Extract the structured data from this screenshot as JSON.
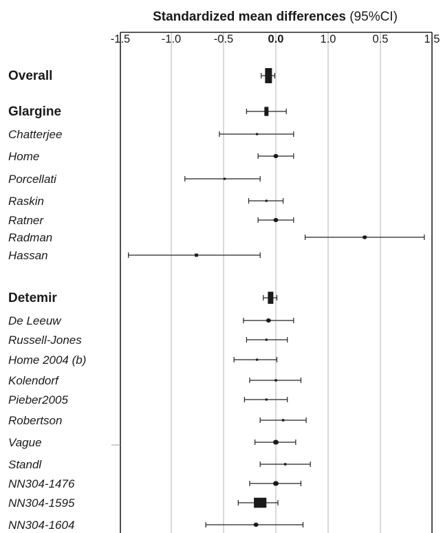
{
  "chart_data": {
    "type": "forest",
    "title_bold": "Standardized mean differences",
    "title_suffix": "(95%CI)",
    "xticks": [
      "-1.5",
      "-1.0",
      "-0.5",
      "0.0",
      "1.0",
      "0.5",
      "1.5"
    ],
    "xlim": [
      -1.5,
      1.5
    ],
    "grid": true,
    "rows": [
      {
        "label": "Overall",
        "group": true,
        "est": -0.07,
        "lo": -0.14,
        "hi": -0.01,
        "weight": 10
      },
      {
        "label": "Glargine",
        "group": true,
        "est": -0.09,
        "lo": -0.28,
        "hi": 0.1,
        "weight": 6
      },
      {
        "label": "Chatterjee",
        "est": -0.18,
        "lo": -0.54,
        "hi": 0.17,
        "weight": 1.2
      },
      {
        "label": "Home",
        "est": 0.0,
        "lo": -0.17,
        "hi": 0.17,
        "weight": 2.2
      },
      {
        "label": "Porcellati",
        "est": -0.49,
        "lo": -0.87,
        "hi": -0.15,
        "weight": 1.2
      },
      {
        "label": "Raskin",
        "est": -0.09,
        "lo": -0.26,
        "hi": 0.07,
        "weight": 1.2
      },
      {
        "label": "Ratner",
        "est": 0.0,
        "lo": -0.17,
        "hi": 0.17,
        "weight": 2.2
      },
      {
        "label": "Radman",
        "est": 0.85,
        "lo": 0.28,
        "hi": 1.42,
        "weight": 2.0
      },
      {
        "label": "Hassan",
        "est": -0.76,
        "lo": -1.41,
        "hi": -0.15,
        "weight": 1.8
      },
      {
        "label": "Detemir",
        "group": true,
        "est": -0.05,
        "lo": -0.12,
        "hi": 0.01,
        "weight": 8
      },
      {
        "label": "De Leeuw",
        "est": -0.07,
        "lo": -0.31,
        "hi": 0.17,
        "weight": 2.2
      },
      {
        "label": "Russell-Jones",
        "est": -0.09,
        "lo": -0.28,
        "hi": 0.11,
        "weight": 1.2
      },
      {
        "label": "Home 2004 (b)",
        "est": -0.18,
        "lo": -0.4,
        "hi": 0.01,
        "weight": 1.2
      },
      {
        "label": "Kolendorf",
        "est": 0.0,
        "lo": -0.25,
        "hi": 0.24,
        "weight": 1.3
      },
      {
        "label": "Pieber2005",
        "est": -0.09,
        "lo": -0.3,
        "hi": 0.11,
        "weight": 1.2
      },
      {
        "label": "Robertson",
        "est": 0.07,
        "lo": -0.15,
        "hi": 0.29,
        "weight": 1.3
      },
      {
        "label": "Vague",
        "est": 0.0,
        "lo": -0.2,
        "hi": 0.19,
        "weight": 2.5
      },
      {
        "label": "Standl",
        "est": 0.09,
        "lo": -0.15,
        "hi": 0.33,
        "weight": 1.3
      },
      {
        "label": "NN304-1476",
        "est": 0.0,
        "lo": -0.25,
        "hi": 0.24,
        "weight": 2.5
      },
      {
        "label": "NN304-1595",
        "est": -0.15,
        "lo": -0.36,
        "hi": 0.02,
        "weight": 6.5
      },
      {
        "label": "NN304-1604",
        "est": -0.19,
        "lo": -0.67,
        "hi": 0.26,
        "weight": 2.2
      }
    ]
  }
}
